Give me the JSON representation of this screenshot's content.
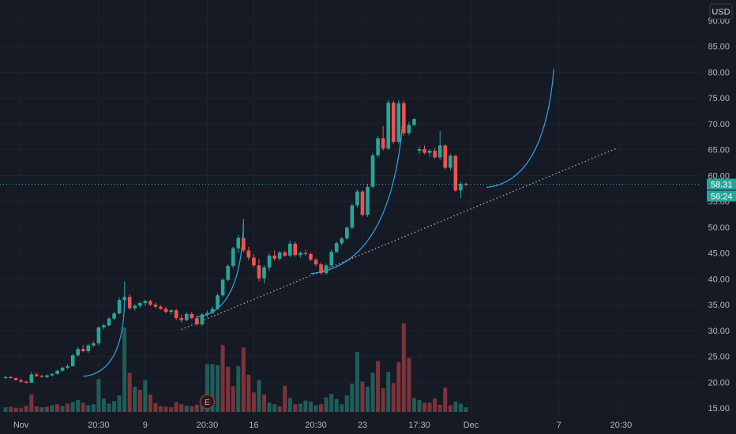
{
  "currency_label": "USD",
  "price_badge": "58.31",
  "countdown_badge": "56:24",
  "earnings_marker": "E",
  "colors": {
    "background": "#161a25",
    "up": "#26a69a",
    "down": "#ef5350",
    "volume_up": "#1f5e58",
    "volume_down": "#7d3339",
    "arc": "#2b9bd8",
    "dotted_trend": "#b2b5be",
    "price_line": "#26a69a",
    "grid": "#1f2330",
    "text": "#b2b5be"
  },
  "chart_data": {
    "type": "candlestick",
    "y_axis": {
      "min": 15,
      "max": 90,
      "ticks": [
        15,
        20,
        25,
        30,
        35,
        40,
        45,
        50,
        55,
        60,
        65,
        70,
        75,
        80,
        85,
        90
      ],
      "tick_labels": [
        "15.00",
        "20.00",
        "25.00",
        "30.00",
        "35.00",
        "40.00",
        "45.00",
        "50.00",
        "55.00",
        "60.00",
        "65.00",
        "70.00",
        "75.00",
        "80.00",
        "85.00",
        "90.00"
      ],
      "side": "right"
    },
    "x_axis": {
      "tick_labels": [
        {
          "label": "Nov",
          "bar": 3
        },
        {
          "label": "20:30",
          "bar": 18
        },
        {
          "label": "9",
          "bar": 27
        },
        {
          "label": "20:30",
          "bar": 39
        },
        {
          "label": "16",
          "bar": 48
        },
        {
          "label": "20:30",
          "bar": 60
        },
        {
          "label": "23",
          "bar": 69
        },
        {
          "label": "17:30",
          "bar": 80
        },
        {
          "label": "Dec",
          "bar": 90
        },
        {
          "label": "7",
          "bar": 107
        },
        {
          "label": "20:30",
          "bar": 119
        }
      ]
    },
    "last_price": 58.31,
    "candles": [
      [
        20.8,
        21.1,
        20.6,
        21.0
      ],
      [
        21.0,
        21.2,
        20.7,
        20.8
      ],
      [
        20.8,
        20.9,
        20.3,
        20.4
      ],
      [
        20.4,
        20.6,
        19.9,
        20.1
      ],
      [
        20.1,
        20.3,
        19.7,
        19.9
      ],
      [
        19.9,
        22.0,
        19.8,
        21.5
      ],
      [
        21.5,
        21.8,
        21.0,
        21.2
      ],
      [
        21.2,
        21.4,
        20.9,
        21.0
      ],
      [
        21.0,
        21.5,
        20.8,
        21.3
      ],
      [
        21.3,
        21.8,
        21.1,
        21.6
      ],
      [
        21.6,
        22.4,
        21.4,
        22.2
      ],
      [
        22.2,
        23.0,
        22.0,
        22.8
      ],
      [
        22.8,
        23.5,
        22.5,
        23.1
      ],
      [
        23.1,
        25.5,
        23.0,
        25.2
      ],
      [
        25.2,
        26.8,
        24.9,
        26.4
      ],
      [
        26.4,
        27.2,
        25.8,
        26.0
      ],
      [
        26.0,
        27.4,
        25.7,
        27.1
      ],
      [
        27.1,
        27.9,
        26.8,
        27.5
      ],
      [
        27.5,
        30.8,
        27.2,
        30.6
      ],
      [
        30.6,
        31.3,
        30.2,
        31.0
      ],
      [
        31.0,
        32.6,
        30.8,
        32.3
      ],
      [
        32.3,
        33.6,
        32.0,
        33.3
      ],
      [
        33.3,
        36.4,
        33.1,
        35.9
      ],
      [
        35.9,
        39.5,
        35.5,
        36.5
      ],
      [
        36.5,
        37.0,
        34.0,
        34.3
      ],
      [
        34.3,
        35.1,
        33.8,
        34.8
      ],
      [
        34.8,
        35.6,
        34.3,
        35.3
      ],
      [
        35.3,
        36.0,
        34.8,
        35.7
      ],
      [
        35.7,
        36.0,
        34.7,
        35.0
      ],
      [
        35.0,
        35.4,
        34.3,
        34.6
      ],
      [
        34.6,
        34.9,
        34.0,
        34.2
      ],
      [
        34.2,
        34.6,
        33.3,
        33.6
      ],
      [
        33.6,
        34.1,
        33.1,
        33.9
      ],
      [
        33.9,
        34.2,
        32.0,
        32.4
      ],
      [
        32.4,
        33.0,
        31.6,
        32.0
      ],
      [
        32.0,
        33.5,
        31.8,
        33.2
      ],
      [
        33.2,
        33.6,
        32.2,
        32.4
      ],
      [
        32.4,
        32.9,
        30.9,
        31.2
      ],
      [
        31.2,
        33.4,
        30.9,
        33.1
      ],
      [
        33.1,
        33.9,
        32.6,
        33.4
      ],
      [
        33.4,
        34.6,
        33.2,
        34.2
      ],
      [
        34.2,
        37.2,
        34.0,
        36.8
      ],
      [
        36.8,
        40.1,
        36.5,
        39.8
      ],
      [
        39.8,
        42.8,
        39.5,
        42.5
      ],
      [
        42.5,
        46.2,
        42.0,
        45.9
      ],
      [
        45.9,
        48.5,
        45.0,
        47.9
      ],
      [
        47.9,
        51.6,
        45.1,
        45.5
      ],
      [
        45.5,
        46.2,
        43.6,
        44.1
      ],
      [
        44.1,
        44.8,
        42.2,
        42.6
      ],
      [
        42.6,
        43.8,
        39.5,
        40.1
      ],
      [
        40.1,
        42.6,
        39.1,
        42.2
      ],
      [
        42.2,
        44.9,
        41.5,
        44.5
      ],
      [
        44.5,
        45.5,
        43.5,
        43.9
      ],
      [
        43.9,
        45.4,
        43.5,
        45.1
      ],
      [
        45.1,
        45.5,
        44.2,
        44.5
      ],
      [
        44.5,
        47.4,
        44.2,
        46.8
      ],
      [
        46.8,
        47.2,
        44.3,
        44.6
      ],
      [
        44.6,
        45.3,
        44.1,
        45.0
      ],
      [
        45.0,
        45.6,
        44.5,
        44.8
      ],
      [
        44.8,
        45.1,
        43.4,
        43.7
      ],
      [
        43.7,
        44.0,
        42.4,
        42.8
      ],
      [
        42.8,
        43.2,
        40.8,
        41.1
      ],
      [
        41.1,
        43.0,
        40.8,
        42.6
      ],
      [
        42.6,
        45.6,
        42.3,
        45.2
      ],
      [
        45.2,
        47.2,
        45.0,
        46.9
      ],
      [
        46.9,
        48.1,
        46.5,
        47.8
      ],
      [
        47.8,
        50.2,
        47.5,
        49.9
      ],
      [
        49.9,
        54.6,
        49.6,
        54.2
      ],
      [
        54.2,
        57.2,
        53.8,
        56.9
      ],
      [
        56.9,
        57.1,
        52.1,
        52.4
      ],
      [
        52.4,
        58.4,
        52.0,
        57.8
      ],
      [
        57.8,
        64.4,
        57.5,
        63.9
      ],
      [
        63.9,
        67.6,
        63.5,
        67.2
      ],
      [
        67.2,
        69.6,
        64.8,
        65.2
      ],
      [
        65.2,
        74.6,
        65.0,
        74.1
      ],
      [
        74.1,
        74.5,
        66.1,
        66.5
      ],
      [
        66.5,
        74.6,
        66.2,
        74.0
      ],
      [
        74.0,
        74.5,
        67.7,
        68.2
      ],
      [
        68.2,
        70.4,
        67.8,
        69.8
      ],
      [
        69.8,
        71.1,
        69.5,
        70.9
      ],
      [
        64.8,
        65.6,
        64.2,
        65.1
      ],
      [
        65.1,
        65.8,
        64.1,
        64.4
      ],
      [
        64.4,
        65.1,
        63.6,
        64.8
      ],
      [
        64.8,
        65.3,
        63.2,
        63.5
      ],
      [
        63.5,
        68.6,
        63.0,
        65.8
      ],
      [
        65.8,
        66.1,
        61.2,
        61.5
      ],
      [
        61.5,
        64.2,
        61.0,
        63.8
      ],
      [
        63.8,
        64.0,
        56.8,
        57.1
      ],
      [
        57.1,
        58.8,
        55.6,
        58.4
      ],
      [
        58.4,
        58.6,
        57.9,
        58.31
      ]
    ],
    "volume": [
      [
        0.9,
        "up"
      ],
      [
        1.0,
        "down"
      ],
      [
        0.8,
        "down"
      ],
      [
        0.7,
        "down"
      ],
      [
        1.2,
        "down"
      ],
      [
        3.4,
        "down"
      ],
      [
        1.1,
        "down"
      ],
      [
        0.9,
        "up"
      ],
      [
        1.0,
        "down"
      ],
      [
        1.3,
        "up"
      ],
      [
        1.5,
        "down"
      ],
      [
        1.1,
        "up"
      ],
      [
        1.6,
        "down"
      ],
      [
        1.9,
        "up"
      ],
      [
        2.3,
        "up"
      ],
      [
        1.8,
        "down"
      ],
      [
        1.3,
        "up"
      ],
      [
        1.5,
        "up"
      ],
      [
        6.4,
        "up"
      ],
      [
        2.6,
        "up"
      ],
      [
        1.6,
        "up"
      ],
      [
        2.1,
        "up"
      ],
      [
        3.2,
        "up"
      ],
      [
        16.4,
        "up"
      ],
      [
        7.6,
        "down"
      ],
      [
        4.9,
        "up"
      ],
      [
        4.3,
        "down"
      ],
      [
        6.2,
        "up"
      ],
      [
        3.4,
        "down"
      ],
      [
        1.7,
        "down"
      ],
      [
        1.1,
        "down"
      ],
      [
        1.0,
        "down"
      ],
      [
        0.9,
        "down"
      ],
      [
        1.9,
        "down"
      ],
      [
        1.5,
        "down"
      ],
      [
        1.2,
        "up"
      ],
      [
        1.1,
        "down"
      ],
      [
        1.4,
        "down"
      ],
      [
        2.3,
        "up"
      ],
      [
        9.3,
        "up"
      ],
      [
        9.3,
        "up"
      ],
      [
        9.1,
        "up"
      ],
      [
        13.0,
        "down"
      ],
      [
        8.8,
        "down"
      ],
      [
        5.0,
        "down"
      ],
      [
        8.9,
        "up"
      ],
      [
        12.5,
        "down"
      ],
      [
        7.2,
        "down"
      ],
      [
        3.8,
        "down"
      ],
      [
        6.2,
        "up"
      ],
      [
        3.4,
        "down"
      ],
      [
        1.8,
        "up"
      ],
      [
        1.5,
        "up"
      ],
      [
        1.1,
        "down"
      ],
      [
        5.1,
        "down"
      ],
      [
        2.7,
        "up"
      ],
      [
        1.5,
        "down"
      ],
      [
        1.6,
        "up"
      ],
      [
        2.2,
        "up"
      ],
      [
        2.0,
        "up"
      ],
      [
        1.3,
        "up"
      ],
      [
        1.5,
        "down"
      ],
      [
        2.8,
        "up"
      ],
      [
        3.5,
        "up"
      ],
      [
        2.5,
        "up"
      ],
      [
        1.5,
        "up"
      ],
      [
        3.2,
        "up"
      ],
      [
        5.5,
        "up"
      ],
      [
        11.7,
        "up"
      ],
      [
        5.9,
        "down"
      ],
      [
        4.9,
        "up"
      ],
      [
        7.6,
        "up"
      ],
      [
        9.9,
        "down"
      ],
      [
        4.6,
        "down"
      ],
      [
        7.8,
        "up"
      ],
      [
        5.6,
        "down"
      ],
      [
        9.7,
        "down"
      ],
      [
        17.2,
        "down"
      ],
      [
        10.5,
        "down"
      ],
      [
        2.7,
        "up"
      ],
      [
        2.3,
        "up"
      ],
      [
        1.8,
        "down"
      ],
      [
        1.8,
        "down"
      ],
      [
        2.6,
        "down"
      ],
      [
        1.4,
        "down"
      ],
      [
        4.7,
        "down"
      ],
      [
        1.3,
        "down"
      ],
      [
        2.0,
        "up"
      ],
      [
        1.6,
        "up"
      ],
      [
        0.9,
        "up"
      ]
    ],
    "volume_max": 17.2,
    "drawings": {
      "arcs": [
        {
          "from": [
            15,
            21.1
          ],
          "to": [
            23,
            36.3
          ],
          "bend": 0.55
        },
        {
          "from": [
            37,
            32.6
          ],
          "to": [
            46,
            50.8
          ],
          "bend": 0.5
        },
        {
          "from": [
            59,
            41.0
          ],
          "to": [
            77,
            73.5
          ],
          "bend": 0.45
        },
        {
          "from": [
            93,
            57.7
          ],
          "to": [
            106,
            80.6
          ],
          "bend": 0.4
        }
      ],
      "trend_line": {
        "from": [
          34,
          30.2
        ],
        "to": [
          118,
          65.2
        ]
      },
      "earnings_bar": 39
    }
  }
}
